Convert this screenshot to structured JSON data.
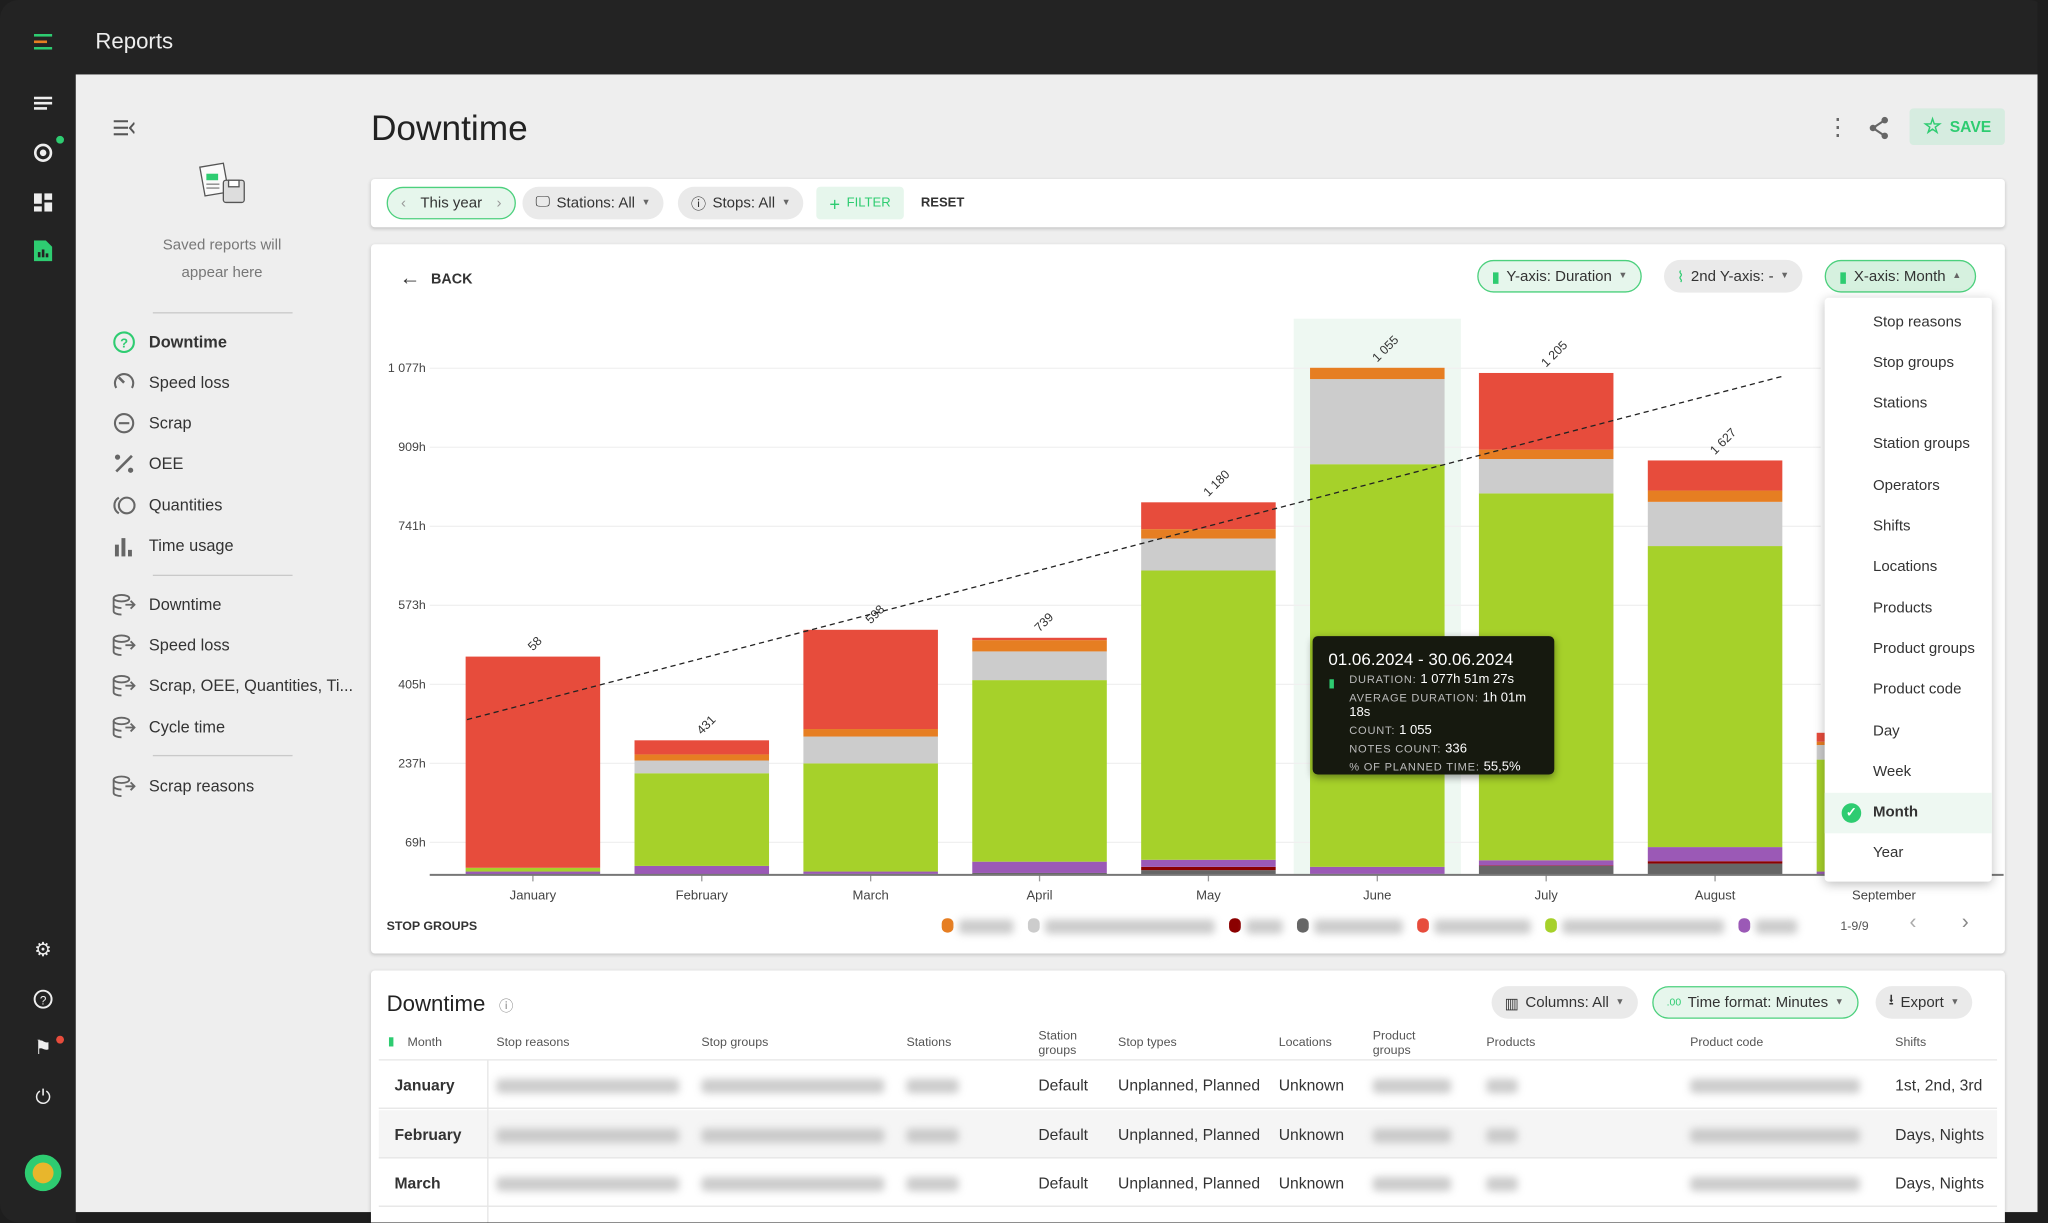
{
  "app": {
    "title": "Reports"
  },
  "header": {
    "title": "Downtime",
    "save_label": "SAVE"
  },
  "sidebar": {
    "empty_text_1": "Saved reports will",
    "empty_text_2": "appear here",
    "reports": [
      {
        "label": "Downtime",
        "active": true
      },
      {
        "label": "Speed loss"
      },
      {
        "label": "Scrap"
      },
      {
        "label": "OEE"
      },
      {
        "label": "Quantities"
      },
      {
        "label": "Time usage"
      }
    ],
    "exports": [
      {
        "label": "Downtime"
      },
      {
        "label": "Speed loss"
      },
      {
        "label": "Scrap, OEE, Quantities, Ti..."
      },
      {
        "label": "Cycle time"
      }
    ],
    "extra": [
      {
        "label": "Scrap reasons"
      }
    ]
  },
  "filters": {
    "period": "This year",
    "stations": "Stations: All",
    "stops": "Stops: All",
    "filter": "FILTER",
    "reset": "RESET"
  },
  "chart_controls": {
    "back": "BACK",
    "y_axis": "Y-axis: Duration",
    "y2_axis": "2nd Y-axis: -",
    "x_axis": "X-axis: Month"
  },
  "xaxis_menu": {
    "items": [
      "Stop reasons",
      "Stop groups",
      "Stations",
      "Station groups",
      "Operators",
      "Shifts",
      "Locations",
      "Products",
      "Product groups",
      "Product code",
      "Day",
      "Week",
      "Month",
      "Year"
    ],
    "selected": "Month"
  },
  "tooltip": {
    "title": "01.06.2024 - 30.06.2024",
    "rows": [
      {
        "label": "DURATION:",
        "value": "1 077h 51m 27s"
      },
      {
        "label": "AVERAGE DURATION:",
        "value": "1h 01m 18s"
      },
      {
        "label": "COUNT:",
        "value": "1 055"
      },
      {
        "label": "NOTES COUNT:",
        "value": "336"
      },
      {
        "label": "% OF PLANNED TIME:",
        "value": "55,5%"
      }
    ]
  },
  "legend": {
    "title": "STOP GROUPS",
    "pager": "1-9/9"
  },
  "chart_data": {
    "type": "bar",
    "stacked": true,
    "categories": [
      "January",
      "February",
      "March",
      "April",
      "May",
      "June",
      "July",
      "August",
      "September"
    ],
    "ylabel": "Duration (h)",
    "ylim": [
      0,
      1150
    ],
    "yticks": [
      69,
      237,
      405,
      573,
      741,
      909,
      1077
    ],
    "ytick_labels": [
      "69h",
      "237h",
      "405h",
      "573h",
      "741h",
      "909h",
      "1 077h"
    ],
    "count_labels": [
      "58",
      "431",
      "598",
      "739",
      "1 180",
      "1 055",
      "1 205",
      "1 627",
      ""
    ],
    "highlighted": "June",
    "series": [
      {
        "name": "dark gray",
        "color": "#666666",
        "values": [
          0,
          0,
          2,
          4,
          10,
          2,
          19,
          24,
          0
        ]
      },
      {
        "name": "dark red",
        "color": "#8b0000",
        "values": [
          0,
          0,
          0,
          0,
          7,
          0,
          1,
          5,
          0
        ]
      },
      {
        "name": "purple",
        "color": "#9b59b6",
        "values": [
          7,
          19,
          5,
          24,
          15,
          15,
          11,
          30,
          7
        ]
      },
      {
        "name": "green",
        "color": "#a6d12a",
        "values": [
          8,
          197,
          230,
          386,
          615,
          856,
          780,
          640,
          238
        ]
      },
      {
        "name": "light gray",
        "color": "#cccccc",
        "values": [
          0,
          27,
          57,
          61,
          68,
          181,
          73,
          94,
          31
        ]
      },
      {
        "name": "orange",
        "color": "#e67e22",
        "values": [
          0,
          13,
          16,
          24,
          20,
          24,
          20,
          24,
          7
        ]
      },
      {
        "name": "red",
        "color": "#e74c3c",
        "values": [
          449,
          30,
          211,
          5,
          57,
          0,
          163,
          64,
          19
        ]
      }
    ],
    "legend_colors": [
      "#e67e22",
      "#cccccc",
      "#8b0000",
      "#666666",
      "#e74c3c",
      "#a6d12a",
      "#9b59b6"
    ],
    "trendline": {
      "from": [
        -0.39,
        330
      ],
      "to": [
        7.4,
        1060
      ]
    }
  },
  "table": {
    "title": "Downtime",
    "columns_btn": "Columns: All",
    "time_format_btn": "Time format: Minutes",
    "export_btn": "Export",
    "headers": [
      "Month",
      "Stop reasons",
      "Stop groups",
      "Stations",
      "Station groups",
      "Stop types",
      "Locations",
      "Product groups",
      "Products",
      "Product code",
      "Shifts"
    ],
    "rows": [
      {
        "month": "January",
        "station_groups": "Default",
        "stop_types": "Unplanned, Planned",
        "locations": "Unknown",
        "shifts": "1st, 2nd, 3rd"
      },
      {
        "month": "February",
        "station_groups": "Default",
        "stop_types": "Unplanned, Planned",
        "locations": "Unknown",
        "shifts": "Days, Nights"
      },
      {
        "month": "March",
        "station_groups": "Default",
        "stop_types": "Unplanned, Planned",
        "locations": "Unknown",
        "shifts": "Days, Nights"
      }
    ]
  }
}
